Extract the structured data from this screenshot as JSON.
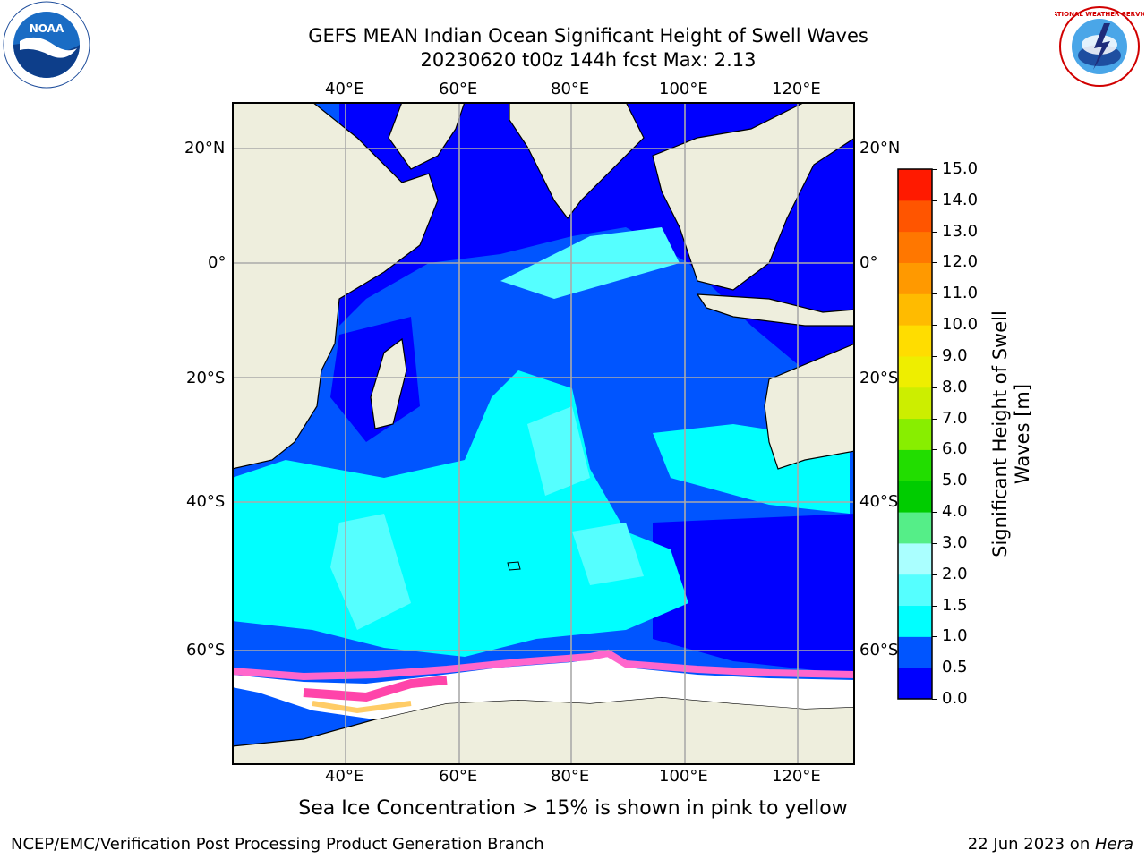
{
  "title_line1": "GEFS MEAN Indian Ocean Significant Height of Swell Waves",
  "title_line2": "20230620 t00z 144h fcst   Max: 2.13",
  "map": {
    "lon_labels": [
      "40°E",
      "60°E",
      "80°E",
      "100°E",
      "120°E"
    ],
    "lat_labels": [
      "20°N",
      "0°",
      "20°S",
      "40°S",
      "60°S"
    ],
    "gridlines": true
  },
  "colorbar": {
    "label_line1": "Significant Height of Swell",
    "label_line2": "Waves [m]",
    "ticks": [
      "15.0",
      "14.0",
      "13.0",
      "12.0",
      "11.0",
      "10.0",
      "9.0",
      "8.0",
      "7.0",
      "6.0",
      "5.0",
      "4.0",
      "3.0",
      "2.0",
      "1.5",
      "1.0",
      "0.5",
      "0.0"
    ],
    "colors": [
      "#0000ff",
      "#0055ff",
      "#00ffff",
      "#55ffff",
      "#aaffff",
      "#55ee88",
      "#00cc00",
      "#22dd00",
      "#88ee00",
      "#ccee00",
      "#eeee00",
      "#ffdd00",
      "#ffbb00",
      "#ff9900",
      "#ff7700",
      "#ff5500",
      "#ff1a00"
    ]
  },
  "caption": "Sea Ice Concentration > 15% is shown in pink to yellow",
  "footer_left": "NCEP/EMC/Verification Post Processing Product Generation Branch",
  "footer_right_prefix": "22 Jun 2023 on ",
  "footer_right_host": "Hera",
  "logos": {
    "noaa": "NOAA",
    "nws": "NATIONAL WEATHER SERVICE"
  }
}
